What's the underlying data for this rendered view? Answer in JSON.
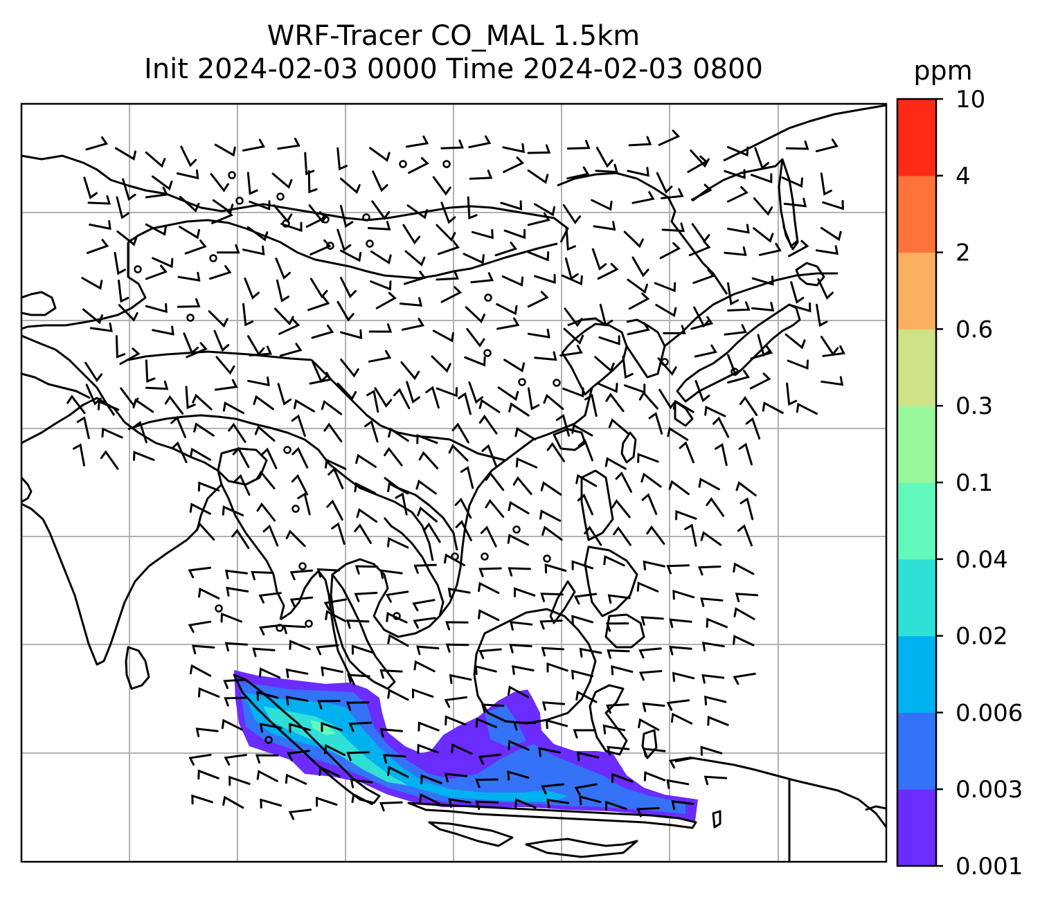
{
  "title": {
    "line1": "WRF-Tracer CO_MAL 1.5km",
    "line2": "Init 2024-02-03 0000 Time 2024-02-03 0800"
  },
  "colorbar": {
    "unit": "ppm",
    "levels": [
      "0.001",
      "0.003",
      "0.006",
      "0.02",
      "0.04",
      "0.1",
      "0.3",
      "0.6",
      "2",
      "4",
      "10"
    ],
    "colors": [
      "#6a2cff",
      "#3473f7",
      "#00b1ef",
      "#2fe0d7",
      "#63f9bd",
      "#99f79c",
      "#cfe288",
      "#fbaf60",
      "#ff7239",
      "#ff2a15"
    ]
  },
  "map": {
    "coast_color": "#000000",
    "grid_color": "#b0b0b0",
    "tracer_plume_colors": [
      "#6a2cff",
      "#3473f7",
      "#00b1ef",
      "#2fe0d7",
      "#63f9bd"
    ]
  }
}
